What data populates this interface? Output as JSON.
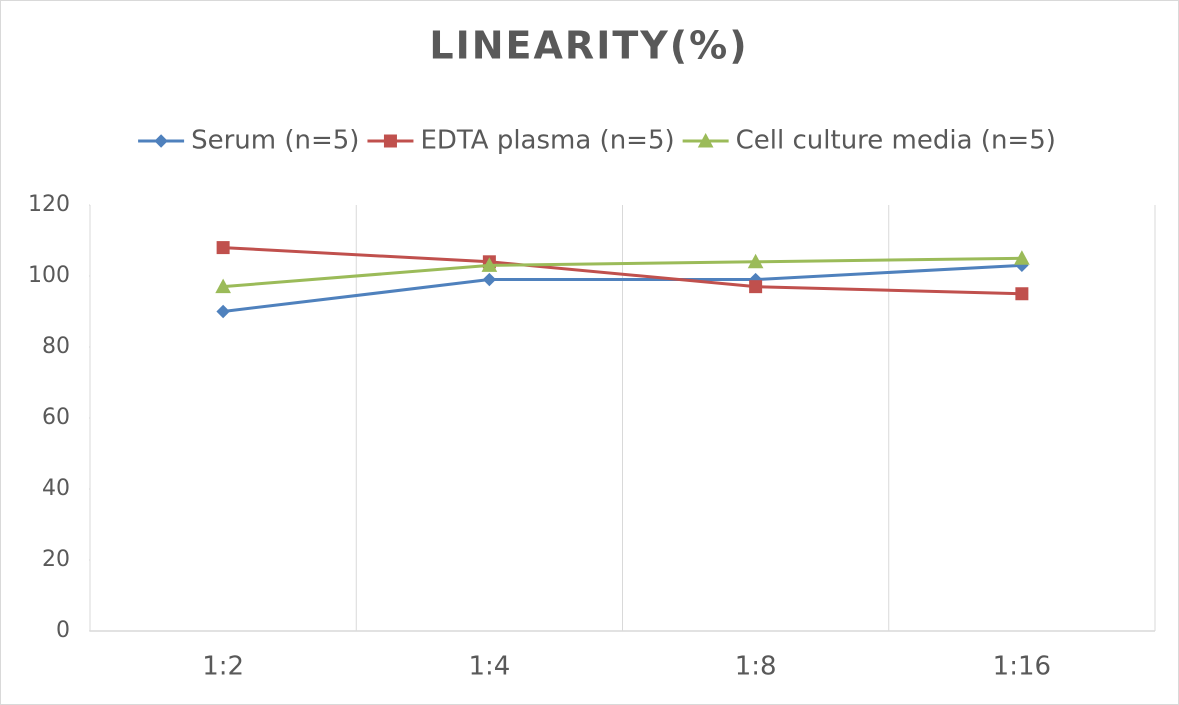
{
  "chart_data": {
    "type": "line",
    "title": "LINEARITY(%)",
    "categories": [
      "1:2",
      "1:4",
      "1:8",
      "1:16"
    ],
    "series": [
      {
        "name": "Serum (n=5)",
        "color": "#4f81bd",
        "marker": "diamond",
        "values": [
          90,
          99,
          99,
          103
        ]
      },
      {
        "name": "EDTA plasma (n=5)",
        "color": "#c0504d",
        "marker": "square",
        "values": [
          108,
          104,
          97,
          95
        ]
      },
      {
        "name": "Cell culture media (n=5)",
        "color": "#9bbb59",
        "marker": "triangle",
        "values": [
          97,
          103,
          104,
          105
        ]
      }
    ],
    "ylim": [
      0,
      120
    ],
    "yticks": [
      0,
      20,
      40,
      60,
      80,
      100,
      120
    ],
    "grid": true,
    "legend": "top"
  }
}
